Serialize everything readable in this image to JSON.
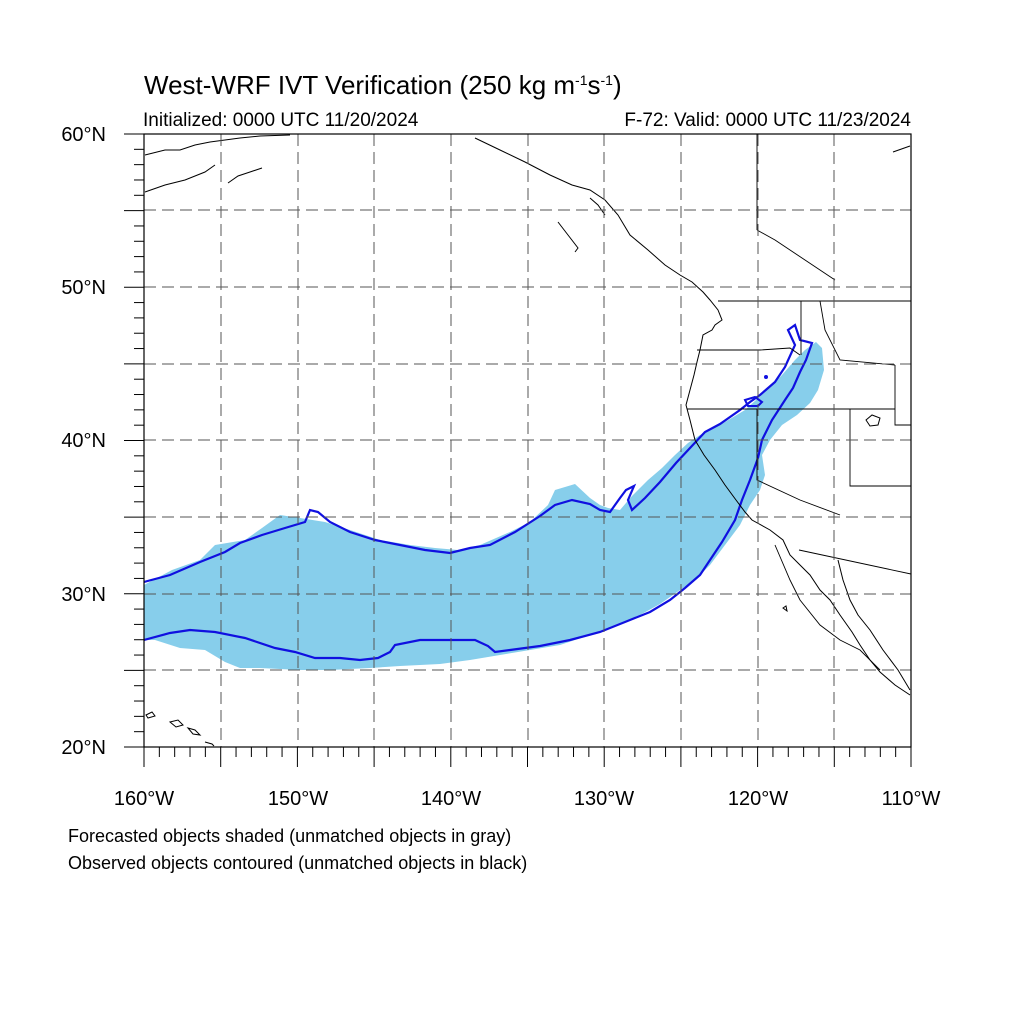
{
  "figure": {
    "title_main": "West-WRF IVT Verification (250 kg m",
    "title_sup1": "-1",
    "title_mid": "s",
    "title_sup2": "-1",
    "title_end": ")",
    "initialized": "Initialized: 0000 UTC 11/20/2024",
    "valid": "F-72: Valid: 0000 UTC 11/23/2024",
    "note_forecast": "Forecasted objects shaded (unmatched objects in gray)",
    "note_observed": "Observed objects contoured (unmatched objects in black)"
  },
  "map": {
    "projection": "cylindrical equidistant",
    "lon_range": [
      -160,
      -110
    ],
    "lat_range": [
      20,
      60
    ],
    "grid": "dashed every 5 degrees",
    "lat_labels": [
      "20°N",
      "30°N",
      "40°N",
      "50°N",
      "60°N"
    ],
    "lon_labels": [
      "160°W",
      "150°W",
      "140°W",
      "130°W",
      "120°W",
      "110°W"
    ],
    "colors": {
      "forecast_fill": "#87ceeb",
      "observed_contour": "#1010e0",
      "coastline": "#000000",
      "grid": "#555555"
    },
    "layers": [
      {
        "name": "forecast IVT object",
        "style": "shaded",
        "color": "#87ceeb"
      },
      {
        "name": "observed IVT object",
        "style": "contour",
        "color": "#1010e0"
      }
    ]
  }
}
